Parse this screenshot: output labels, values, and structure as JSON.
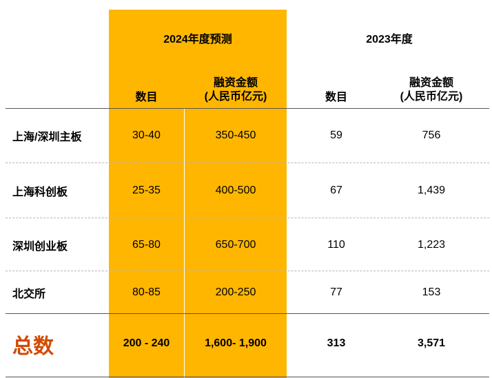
{
  "header": {
    "group_2024": "2024年度预测",
    "group_2023": "2023年度",
    "count_label": "数目",
    "amount_label_line1": "融资金额",
    "amount_label_line2": "(人民币亿元)"
  },
  "rows": [
    {
      "label": "上海/深圳主板",
      "c2024_count": "30-40",
      "c2024_amount": "350-450",
      "c2023_count": "59",
      "c2023_amount": "756"
    },
    {
      "label": "上海科创板",
      "c2024_count": "25-35",
      "c2024_amount": "400-500",
      "c2023_count": "67",
      "c2023_amount": "1,439"
    },
    {
      "label": "深圳创业板",
      "c2024_count": "65-80",
      "c2024_amount": "650-700",
      "c2023_count": "110",
      "c2023_amount": "1,223"
    },
    {
      "label": "北交所",
      "c2024_count": "80-85",
      "c2024_amount": "200-250",
      "c2023_count": "77",
      "c2023_amount": "153"
    }
  ],
  "total": {
    "label": "总数",
    "c2024_count": "200 - 240",
    "c2024_amount": "1,600- 1,900",
    "c2023_count": "313",
    "c2023_amount": "3,571"
  },
  "colors": {
    "highlight": "#FFB600",
    "total_label": "#D04A02"
  }
}
